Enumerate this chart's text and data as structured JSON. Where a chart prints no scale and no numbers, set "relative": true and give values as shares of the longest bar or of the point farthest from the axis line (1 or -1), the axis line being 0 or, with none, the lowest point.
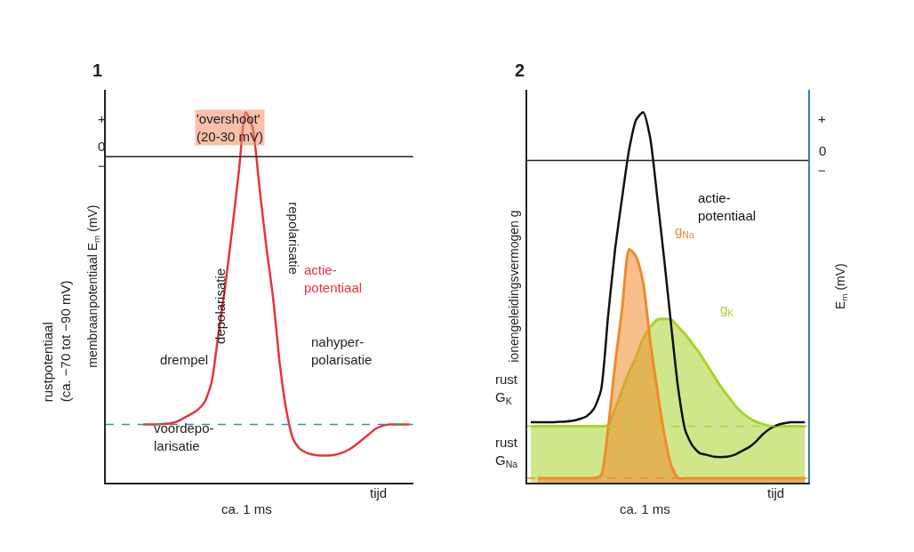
{
  "chart_data": [
    {
      "type": "line",
      "title": "1",
      "ylabel": "membraanpotentiaal E$_{m}$ (mV)",
      "relative": true,
      "marker": "none",
      "line_style": "solid",
      "categories": [
        null,
        null,
        null,
        null,
        null,
        null,
        null,
        null,
        null,
        null,
        null,
        null,
        null,
        null,
        null,
        null,
        null,
        null,
        null,
        null,
        null,
        null,
        null,
        null,
        null,
        null,
        null,
        null,
        null,
        null,
        null,
        null,
        null,
        null,
        null,
        null,
        null,
        null,
        null,
        null,
        null,
        null,
        null,
        null,
        null
      ],
      "series": [
        {
          "name": "actie-\npotentiaal",
          "color": "#e8323c",
          "values": [
            null,
            null,
            null,
            null,
            null,
            0.157,
            0.157,
            0.157,
            0.158,
            0.16,
            0.165,
            0.175,
            0.185,
            0.197,
            0.218,
            0.27,
            0.4,
            0.53,
            0.68,
            0.84,
            1,
            0.96,
            0.8,
            0.64,
            0.5,
            0.32,
            0.19,
            0.115,
            0.09,
            0.08,
            0.075,
            0.073,
            0.073,
            0.075,
            0.08,
            0.088,
            0.1,
            0.115,
            0.13,
            0.145,
            0.153,
            0.157,
            0.157,
            0.157,
            0.157
          ]
        }
      ],
      "ref_lines": [
        {
          "axis": "y",
          "value": 0.88,
          "color": "#222222",
          "line_style": "solid"
        },
        {
          "axis": "y",
          "value": 0.157,
          "color": "#3a8fa0",
          "line_style": "dashed"
        }
      ],
      "annotations": [
        "'overshoot'\n(20-30 mV)",
        "repolarisatie",
        "depolarisatie",
        "drempel",
        "nahyper-\npolarisatie",
        "voordepo-\nlarisatie",
        "tijd",
        "ca. 1 ms",
        "+",
        "−",
        "rustpotentiaal\n(ca. −70 tot −90 mV)",
        "0"
      ]
    },
    {
      "type": "line",
      "title": "2",
      "ylabel": "ionengeleidingsvermogen g",
      "y2label": "E$_{m}$ (mV)",
      "relative": true,
      "marker": "none",
      "line_style": "solid",
      "categories": [
        null,
        null,
        null,
        null,
        null,
        null,
        null,
        null,
        null,
        null,
        null,
        null,
        null,
        null,
        null,
        null,
        null,
        null,
        null,
        null,
        null,
        null,
        null,
        null,
        null,
        null,
        null,
        null,
        null,
        null,
        null,
        null,
        null,
        null,
        null,
        null,
        null,
        null,
        null,
        null
      ],
      "series": [
        {
          "name": "g$_{K}$",
          "type": "area",
          "color": "#a8d42a",
          "values": [
            0.152,
            0.152,
            0.152,
            0.152,
            0.152,
            0.152,
            0.152,
            0.152,
            0.152,
            0.152,
            0.152,
            0.155,
            0.2,
            0.25,
            0.3,
            0.34,
            0.39,
            0.42,
            0.44,
            0.442,
            0.44,
            0.42,
            0.4,
            0.375,
            0.35,
            0.32,
            0.29,
            0.26,
            0.235,
            0.21,
            0.19,
            0.175,
            0.165,
            0.158,
            0.153,
            0.152,
            0.152,
            0.152,
            0.152,
            0.152
          ]
        },
        {
          "name": "g$_{Na}$",
          "type": "area",
          "color": "#f08a2c",
          "values": [
            null,
            0.012,
            0.012,
            0.012,
            0.012,
            0.012,
            0.012,
            0.012,
            0.012,
            0.012,
            0.02,
            0.146,
            0.32,
            0.47,
            0.63,
            0.61,
            0.54,
            0.38,
            0.25,
            0.13,
            0.045,
            0.012,
            0.012,
            0.012,
            0.012,
            0.012,
            0.012,
            0.012,
            0.012,
            0.012,
            0.012,
            0.012,
            0.012,
            0.012,
            0.012,
            0.012,
            0.012,
            0.012,
            0.012,
            0.012
          ]
        },
        {
          "name": "actie-\npotentiaal",
          "type": "line",
          "color": "#111111",
          "values": [
            0.163,
            0.163,
            0.163,
            0.163,
            0.164,
            0.165,
            0.167,
            0.172,
            0.18,
            0.2,
            0.25,
            0.45,
            0.63,
            0.77,
            0.9,
            0.98,
            1,
            0.93,
            0.77,
            0.6,
            0.42,
            0.25,
            0.14,
            0.1,
            0.08,
            0.075,
            0.07,
            0.069,
            0.07,
            0.075,
            0.085,
            0.095,
            0.11,
            0.13,
            0.145,
            0.155,
            0.16,
            0.163,
            0.163,
            0.163
          ]
        }
      ],
      "ref_lines": [
        {
          "axis": "y",
          "value": 0.87,
          "color": "#222222",
          "line_style": "solid"
        },
        {
          "axis": "y",
          "value": 0.152,
          "color": "#a8d42a",
          "line_style": "dashed"
        },
        {
          "axis": "y",
          "value": 0.012,
          "color": "#f08a2c",
          "line_style": "dashed"
        }
      ],
      "annotations": [
        "rust\nG$_{K}$",
        "rust\nG$_{Na}$",
        "tijd",
        "ca. 1 ms",
        "+",
        "−",
        "0"
      ]
    }
  ]
}
